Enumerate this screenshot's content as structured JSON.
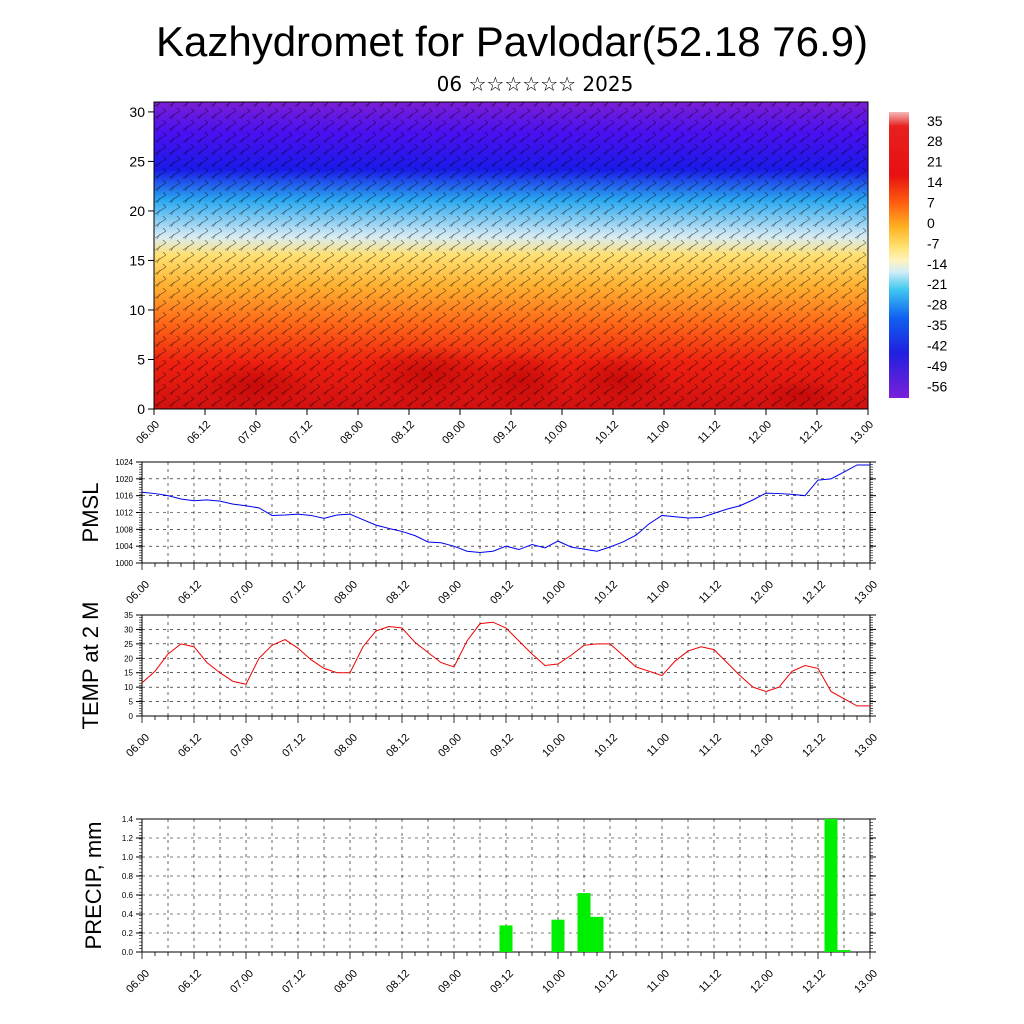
{
  "title": "Kazhydromet for Pavlodar(52.18 76.9)",
  "subtitle": "06 ☆☆☆☆☆☆ 2025",
  "colors": {
    "pmsl_line": "#0000ee",
    "temp_line": "#ee0000",
    "precip_bar": "#00ee00"
  },
  "chart_data": [
    {
      "type": "heatmap",
      "name": "vertical cross-section temperature with wind barbs",
      "y_ticks": [
        "0",
        "5",
        "10",
        "15",
        "20",
        "25",
        "30"
      ],
      "ylim": [
        0,
        31
      ],
      "x_ticks": [
        "06.00",
        "06.12",
        "07.00",
        "07.12",
        "08.00",
        "08.12",
        "09.00",
        "09.12",
        "10.00",
        "10.12",
        "11.00",
        "11.12",
        "12.00",
        "12.12",
        "13.00"
      ],
      "colorbar_labels": [
        "35",
        "28",
        "21",
        "14",
        "7",
        "0",
        "-7",
        "-14",
        "-21",
        "-28",
        "-35",
        "-42",
        "-49",
        "-56"
      ],
      "colorbar_range": [
        -60,
        38
      ]
    },
    {
      "type": "line",
      "ylabel": "PMSL",
      "y_ticks": [
        "1024",
        "1020",
        "1016",
        "1012",
        "1008",
        "1004",
        "1000"
      ],
      "ylim": [
        1000,
        1024
      ],
      "x_ticks": [
        "06.00",
        "06.12",
        "07.00",
        "07.12",
        "08.00",
        "08.12",
        "09.00",
        "09.12",
        "10.00",
        "10.12",
        "11.00",
        "11.12",
        "12.00",
        "12.12",
        "13.00"
      ],
      "x": [
        0,
        3,
        6,
        9,
        12,
        15,
        18,
        21,
        24,
        27,
        30,
        33,
        36,
        39,
        42,
        45,
        48,
        51,
        54,
        57,
        60,
        63,
        66,
        69,
        72,
        75,
        78,
        81,
        84,
        87,
        90,
        93,
        96,
        99,
        102,
        105,
        108,
        111,
        114,
        117,
        120,
        123,
        126,
        129,
        132,
        135,
        138,
        141,
        144,
        147,
        150,
        153,
        156,
        159,
        162,
        165,
        168
      ],
      "values": [
        1016.8,
        1016.5,
        1016,
        1015.2,
        1014.8,
        1015,
        1014.7,
        1014,
        1013.6,
        1013.1,
        1011.3,
        1011.4,
        1011.6,
        1011.3,
        1010.6,
        1011.4,
        1011.6,
        1010.3,
        1009,
        1008.2,
        1007.5,
        1006.5,
        1005,
        1004.8,
        1004,
        1002.8,
        1002.5,
        1002.8,
        1004,
        1003.2,
        1004.4,
        1003.6,
        1005.2,
        1003.8,
        1003.3,
        1002.8,
        1003.8,
        1005,
        1006.6,
        1009.3,
        1011.3,
        1011,
        1010.7,
        1010.8,
        1011.8,
        1012.8,
        1013.6,
        1015,
        1016.6,
        1016.5,
        1016.3,
        1016,
        1019.7,
        1020,
        1021.6,
        1023.3,
        1023.3
      ]
    },
    {
      "type": "line",
      "ylabel": "TEMP at 2 M",
      "y_ticks": [
        "35",
        "30",
        "25",
        "20",
        "15",
        "10",
        "5",
        "0"
      ],
      "ylim": [
        0,
        35
      ],
      "x_ticks": [
        "06.00",
        "06.12",
        "07.00",
        "07.12",
        "08.00",
        "08.12",
        "09.00",
        "09.12",
        "10.00",
        "10.12",
        "11.00",
        "11.12",
        "12.00",
        "12.12",
        "13.00"
      ],
      "x": [
        0,
        3,
        6,
        9,
        12,
        15,
        18,
        21,
        24,
        27,
        30,
        33,
        36,
        39,
        42,
        45,
        48,
        51,
        54,
        57,
        60,
        63,
        66,
        69,
        72,
        75,
        78,
        81,
        84,
        87,
        90,
        93,
        96,
        99,
        102,
        105,
        108,
        111,
        114,
        117,
        120,
        123,
        126,
        129,
        132,
        135,
        138,
        141,
        144,
        147,
        150,
        153,
        156,
        159,
        162,
        165,
        168
      ],
      "values": [
        11.5,
        15.5,
        21.5,
        25,
        24,
        18.5,
        15,
        12,
        11,
        20,
        24.5,
        26.5,
        23.5,
        19.5,
        16.5,
        15,
        15,
        24,
        29.5,
        31,
        30.5,
        25.5,
        22,
        18.5,
        17,
        26,
        32,
        32.5,
        30.5,
        26,
        21.5,
        17.5,
        18,
        21,
        24.5,
        25,
        25,
        21,
        17,
        15.5,
        14,
        19,
        22.5,
        24,
        23,
        18.5,
        14,
        10,
        8.5,
        10,
        15.5,
        17.5,
        16.5,
        8.5,
        6,
        3.5,
        3.5
      ]
    },
    {
      "type": "bar",
      "ylabel": "PRECIP, mm",
      "y_ticks": [
        "1.4",
        "1.2",
        "1.0",
        "0.8",
        "0.6",
        "0.4",
        "0.2",
        "0.0"
      ],
      "ylim": [
        0,
        1.4
      ],
      "x_ticks": [
        "06.00",
        "06.12",
        "07.00",
        "07.12",
        "08.00",
        "08.12",
        "09.00",
        "09.12",
        "10.00",
        "10.12",
        "11.00",
        "11.12",
        "12.00",
        "12.12",
        "13.00"
      ],
      "x": [
        84,
        96,
        102,
        105,
        159,
        162
      ],
      "values": [
        0.28,
        0.34,
        0.62,
        0.37,
        1.4,
        0.02
      ]
    }
  ]
}
